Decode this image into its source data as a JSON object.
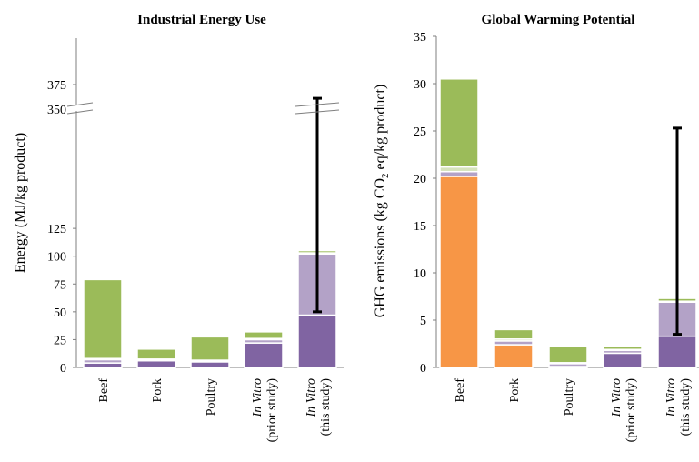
{
  "colors": {
    "green": "#9bbb59",
    "light_green": "#d6e3bc",
    "purple": "#8064a2",
    "light_purple": "#b3a2c7",
    "orange": "#f79646",
    "axis": "#7f7f7f",
    "errorbar": "#000000"
  },
  "chart_data": [
    {
      "type": "bar",
      "stacked": true,
      "title": "Industrial Energy Use",
      "ylabel": "Energy (MJ/kg product)",
      "ylim": [
        0,
        375
      ],
      "axis_break": [
        125,
        350
      ],
      "yticks": [
        "0",
        "25",
        "50",
        "75",
        "100",
        "125",
        "350",
        "375"
      ],
      "categories": [
        {
          "lines": [
            {
              "text": "Beef",
              "italic": false
            }
          ]
        },
        {
          "lines": [
            {
              "text": "Pork",
              "italic": false
            }
          ]
        },
        {
          "lines": [
            {
              "text": "Poultry",
              "italic": false
            }
          ]
        },
        {
          "lines": [
            {
              "text": "In Vitro",
              "italic": true
            },
            {
              "text": "(prior study)",
              "italic": false
            }
          ]
        },
        {
          "lines": [
            {
              "text": "In Vitro",
              "italic": true
            },
            {
              "text": "(this study)",
              "italic": false
            }
          ]
        }
      ],
      "series": [
        {
          "color": "purple",
          "values": [
            4,
            6,
            5,
            22,
            47
          ]
        },
        {
          "color": "light_purple",
          "values": [
            3,
            1,
            1,
            3,
            55
          ]
        },
        {
          "color": "light_green",
          "values": [
            1,
            0.5,
            0.5,
            1,
            1
          ]
        },
        {
          "color": "green",
          "values": [
            71,
            9,
            21,
            6,
            2
          ]
        }
      ],
      "error_bars": [
        null,
        null,
        null,
        null,
        {
          "center": 104,
          "low": 50,
          "high": 361
        }
      ]
    },
    {
      "type": "bar",
      "stacked": true,
      "title": "Global Warming Potential",
      "ylabel": "GHG emissions (kg CO2 eq/kg product)",
      "ylim": [
        0,
        35
      ],
      "yticks": [
        "0",
        "5",
        "10",
        "15",
        "20",
        "25",
        "30",
        "35"
      ],
      "categories": [
        {
          "lines": [
            {
              "text": "Beef",
              "italic": false
            }
          ]
        },
        {
          "lines": [
            {
              "text": "Pork",
              "italic": false
            }
          ]
        },
        {
          "lines": [
            {
              "text": "Poultry",
              "italic": false
            }
          ]
        },
        {
          "lines": [
            {
              "text": "In Vitro",
              "italic": true
            },
            {
              "text": "(prior study)",
              "italic": false
            }
          ]
        },
        {
          "lines": [
            {
              "text": "In Vitro",
              "italic": true
            },
            {
              "text": "(this study)",
              "italic": false
            }
          ]
        }
      ],
      "series": [
        {
          "color": "orange",
          "values": [
            20.2,
            2.4,
            0,
            0,
            0
          ]
        },
        {
          "color": "purple",
          "values": [
            0,
            0,
            0.1,
            1.5,
            3.3
          ]
        },
        {
          "color": "light_purple",
          "values": [
            0.5,
            0.4,
            0.3,
            0.3,
            3.6
          ]
        },
        {
          "color": "light_green",
          "values": [
            0.5,
            0.2,
            0.1,
            0.1,
            0.1
          ]
        },
        {
          "color": "green",
          "values": [
            9.3,
            1,
            1.7,
            0.3,
            0.3
          ]
        }
      ],
      "error_bars": [
        null,
        null,
        null,
        null,
        {
          "center": 7.3,
          "low": 3.5,
          "high": 25.3
        }
      ]
    }
  ]
}
